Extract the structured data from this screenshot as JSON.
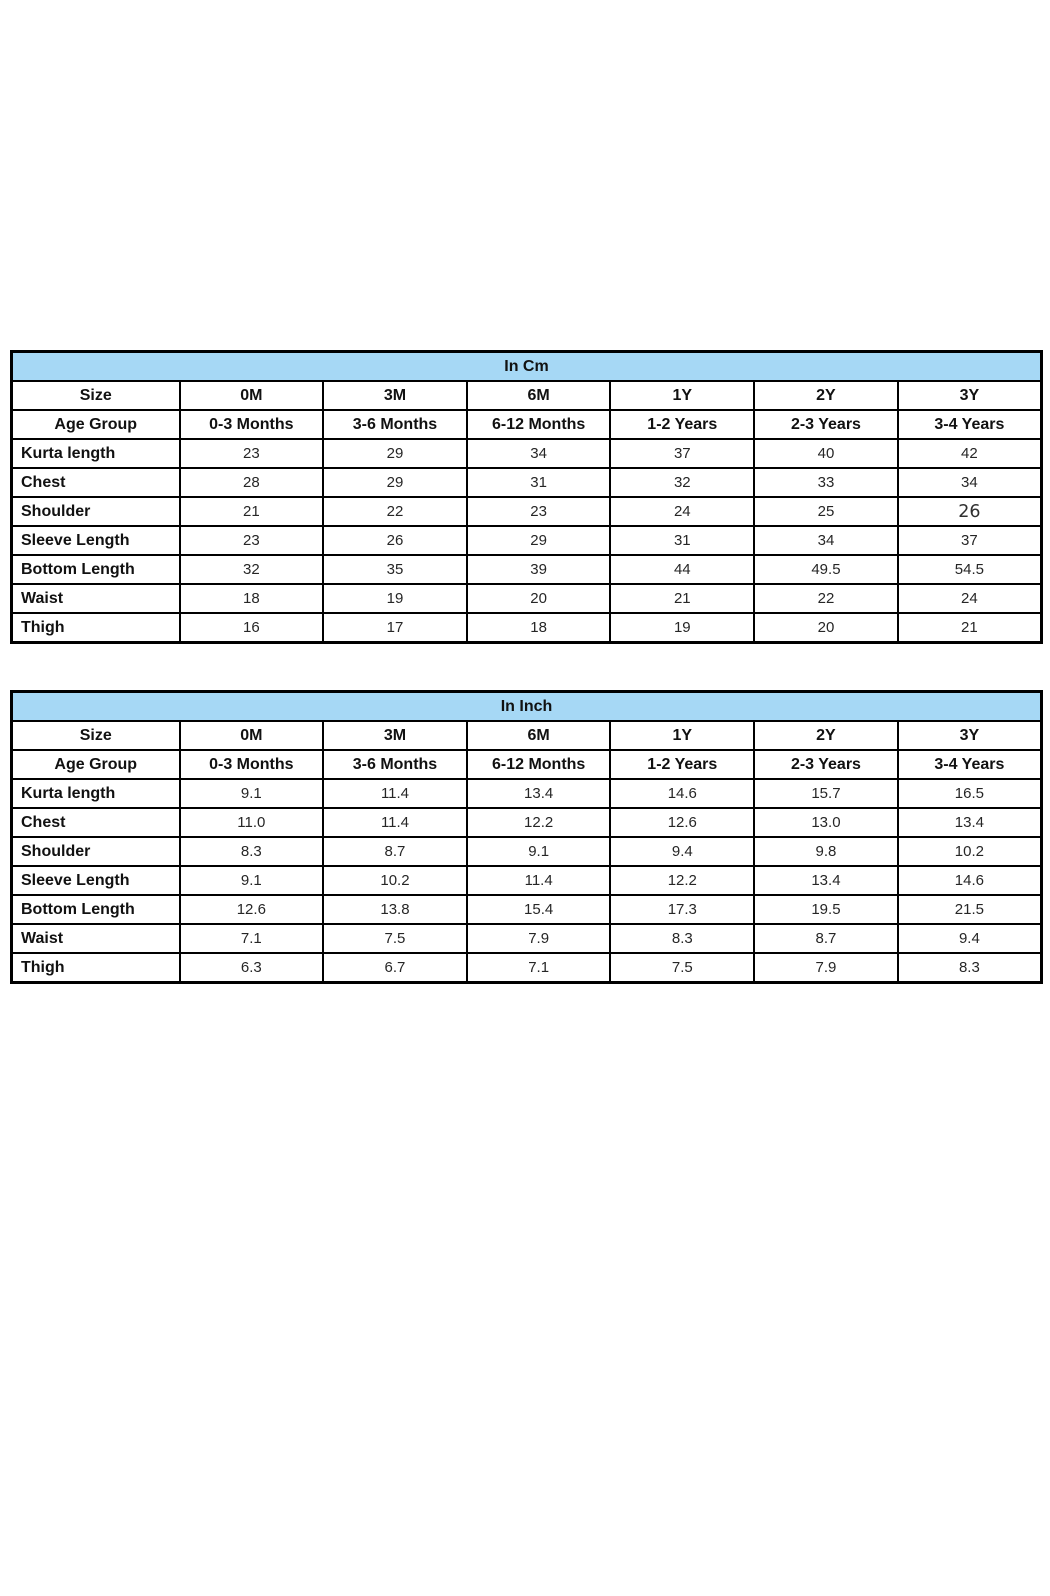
{
  "page": {
    "background": "#ffffff",
    "accent_header_color": "#a6d8f5",
    "border_color": "#000000"
  },
  "chart_data": [
    {
      "type": "table",
      "title": "In Cm",
      "size_label": "Size",
      "age_label": "Age Group",
      "columns": [
        "0M",
        "3M",
        "6M",
        "1Y",
        "2Y",
        "3Y"
      ],
      "age_groups": [
        "0-3 Months",
        "3-6 Months",
        "6-12 Months",
        "1-2 Years",
        "2-3 Years",
        "3-4 Years"
      ],
      "rows": [
        {
          "label": "Kurta length",
          "values": [
            "23",
            "29",
            "34",
            "37",
            "40",
            "42"
          ]
        },
        {
          "label": "Chest",
          "values": [
            "28",
            "29",
            "31",
            "32",
            "33",
            "34"
          ]
        },
        {
          "label": "Shoulder",
          "values": [
            "21",
            "22",
            "23",
            "24",
            "25",
            "26"
          ]
        },
        {
          "label": "Sleeve Length",
          "values": [
            "23",
            "26",
            "29",
            "31",
            "34",
            "37"
          ]
        },
        {
          "label": "Bottom Length",
          "values": [
            "32",
            "35",
            "39",
            "44",
            "49.5",
            "54.5"
          ]
        },
        {
          "label": "Waist",
          "values": [
            "18",
            "19",
            "20",
            "21",
            "22",
            "24"
          ]
        },
        {
          "label": "Thigh",
          "values": [
            "16",
            "17",
            "18",
            "19",
            "20",
            "21"
          ]
        }
      ]
    },
    {
      "type": "table",
      "title": "In Inch",
      "size_label": "Size",
      "age_label": "Age Group",
      "columns": [
        "0M",
        "3M",
        "6M",
        "1Y",
        "2Y",
        "3Y"
      ],
      "age_groups": [
        "0-3 Months",
        "3-6 Months",
        "6-12 Months",
        "1-2 Years",
        "2-3 Years",
        "3-4 Years"
      ],
      "rows": [
        {
          "label": "Kurta length",
          "values": [
            "9.1",
            "11.4",
            "13.4",
            "14.6",
            "15.7",
            "16.5"
          ]
        },
        {
          "label": "Chest",
          "values": [
            "11.0",
            "11.4",
            "12.2",
            "12.6",
            "13.0",
            "13.4"
          ]
        },
        {
          "label": "Shoulder",
          "values": [
            "8.3",
            "8.7",
            "9.1",
            "9.4",
            "9.8",
            "10.2"
          ]
        },
        {
          "label": "Sleeve Length",
          "values": [
            "9.1",
            "10.2",
            "11.4",
            "12.2",
            "13.4",
            "14.6"
          ]
        },
        {
          "label": "Bottom Length",
          "values": [
            "12.6",
            "13.8",
            "15.4",
            "17.3",
            "19.5",
            "21.5"
          ]
        },
        {
          "label": "Waist",
          "values": [
            "7.1",
            "7.5",
            "7.9",
            "8.3",
            "8.7",
            "9.4"
          ]
        },
        {
          "label": "Thigh",
          "values": [
            "6.3",
            "6.7",
            "7.1",
            "7.5",
            "7.9",
            "8.3"
          ]
        }
      ]
    }
  ]
}
